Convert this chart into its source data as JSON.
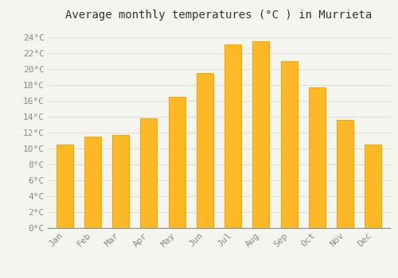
{
  "title": "Average monthly temperatures (°C ) in Murrieta",
  "months": [
    "Jan",
    "Feb",
    "Mar",
    "Apr",
    "May",
    "Jun",
    "Jul",
    "Aug",
    "Sep",
    "Oct",
    "Nov",
    "Dec"
  ],
  "values": [
    10.5,
    11.5,
    11.7,
    13.8,
    16.5,
    19.5,
    23.1,
    23.5,
    21.0,
    17.7,
    13.6,
    10.5
  ],
  "bar_color_main": "#FDB827",
  "bar_color_edge": "#F5A800",
  "yticks": [
    0,
    2,
    4,
    6,
    8,
    10,
    12,
    14,
    16,
    18,
    20,
    22,
    24
  ],
  "ylim": [
    0,
    25.5
  ],
  "background_color": "#f5f5f0",
  "plot_bg_color": "#f5f5f0",
  "grid_color": "#dddddd",
  "title_fontsize": 10,
  "tick_fontsize": 8,
  "tick_color": "#888888",
  "title_color": "#333333",
  "bar_width": 0.6
}
